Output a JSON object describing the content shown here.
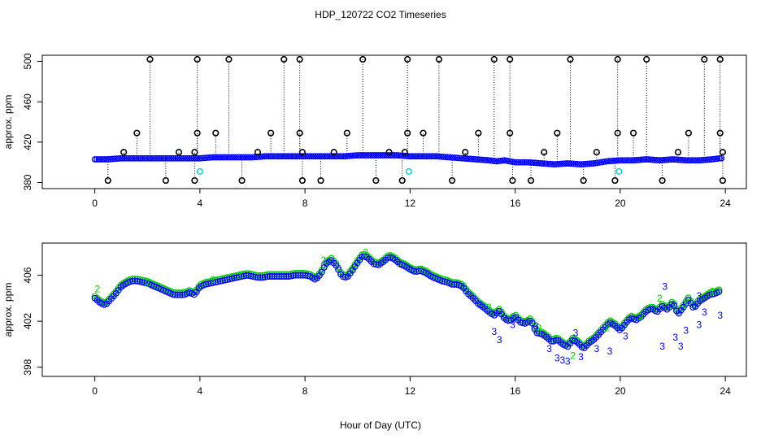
{
  "title": "HDP_120722  CO2 Timeseries",
  "xlabel": "Hour of Day (UTC)",
  "colors": {
    "blue": "#0000ff",
    "green": "#00cc00",
    "cyan": "#00cccc",
    "black": "#000000"
  },
  "chart_data": [
    {
      "type": "scatter",
      "ylabel": "approx. ppm",
      "xlim": [
        -2,
        24.8
      ],
      "ylim": [
        374,
        506
      ],
      "xticks": [
        0,
        4,
        8,
        12,
        16,
        20,
        24
      ],
      "yticks": [
        380,
        420,
        460,
        500
      ],
      "flag_high": 502,
      "flag_low": 382,
      "spike_x": [
        2.1,
        3.9,
        5.1,
        7.2,
        7.8,
        10.2,
        11.9,
        13.1,
        15.2,
        15.8,
        18.1,
        19.9,
        21.0,
        23.2,
        23.8
      ],
      "mid_markers": [
        {
          "x": 1.6,
          "y": 429
        },
        {
          "x": 3.9,
          "y": 429
        },
        {
          "x": 4.6,
          "y": 429
        },
        {
          "x": 6.7,
          "y": 429
        },
        {
          "x": 7.8,
          "y": 429
        },
        {
          "x": 9.6,
          "y": 429
        },
        {
          "x": 11.9,
          "y": 429
        },
        {
          "x": 12.5,
          "y": 429
        },
        {
          "x": 14.6,
          "y": 429
        },
        {
          "x": 15.8,
          "y": 429
        },
        {
          "x": 17.6,
          "y": 429
        },
        {
          "x": 19.9,
          "y": 429
        },
        {
          "x": 20.5,
          "y": 429
        },
        {
          "x": 22.6,
          "y": 429
        },
        {
          "x": 23.8,
          "y": 429
        },
        {
          "x": 1.1,
          "y": 410
        },
        {
          "x": 3.2,
          "y": 410
        },
        {
          "x": 3.8,
          "y": 410
        },
        {
          "x": 6.2,
          "y": 410
        },
        {
          "x": 7.9,
          "y": 410
        },
        {
          "x": 9.1,
          "y": 410
        },
        {
          "x": 11.2,
          "y": 410
        },
        {
          "x": 11.8,
          "y": 410
        },
        {
          "x": 14.1,
          "y": 410
        },
        {
          "x": 17.1,
          "y": 410
        },
        {
          "x": 19.1,
          "y": 410
        },
        {
          "x": 22.2,
          "y": 410
        },
        {
          "x": 23.9,
          "y": 410
        }
      ],
      "low_markers_x": [
        0.5,
        2.7,
        3.8,
        5.6,
        7.9,
        8.6,
        10.7,
        11.7,
        13.6,
        15.9,
        16.6,
        18.6,
        19.8,
        21.6,
        23.9
      ],
      "cyan_markers": [
        {
          "x": 4.0,
          "y": 391
        },
        {
          "x": 11.95,
          "y": 391
        },
        {
          "x": 19.95,
          "y": 391
        }
      ],
      "series": [
        {
          "name": "co2",
          "x": [
            0.05,
            0.5,
            1,
            1.5,
            2,
            2.5,
            3,
            3.5,
            4,
            4.5,
            5,
            5.5,
            6,
            6.5,
            7,
            7.5,
            8,
            8.5,
            9,
            9.5,
            10,
            10.5,
            11,
            11.5,
            12,
            12.5,
            13,
            13.5,
            14,
            14.5,
            15,
            15.3,
            15.6,
            16,
            16.5,
            17,
            17.5,
            18,
            18.5,
            19,
            19.5,
            20,
            20.5,
            21,
            21.5,
            22,
            22.5,
            23,
            23.5,
            23.8
          ],
          "y": [
            403,
            403,
            404,
            404,
            404,
            404,
            404,
            404,
            404,
            405,
            405,
            405,
            405,
            406,
            406,
            406,
            406,
            406,
            406,
            406,
            407,
            407,
            407,
            407,
            406,
            406,
            406,
            405,
            404,
            403,
            402,
            401,
            402,
            400,
            400,
            399,
            398,
            399,
            398,
            399,
            401,
            402,
            402,
            403,
            402,
            403,
            402,
            402,
            403,
            404
          ]
        }
      ]
    },
    {
      "type": "scatter",
      "ylabel": "approx. ppm",
      "xlim": [
        -2,
        24.8
      ],
      "ylim": [
        397.2,
        408.8
      ],
      "xticks": [
        0,
        4,
        8,
        12,
        16,
        20,
        24
      ],
      "yticks": [
        398,
        402,
        406
      ],
      "series": [
        {
          "name": "co2",
          "x": [
            0,
            0.2,
            0.4,
            0.6,
            0.8,
            1,
            1.2,
            1.4,
            1.6,
            1.8,
            2,
            2.2,
            2.4,
            2.6,
            2.8,
            3,
            3.2,
            3.4,
            3.6,
            3.8,
            4,
            4.2,
            4.4,
            4.6,
            4.8,
            5,
            5.2,
            5.4,
            5.6,
            5.8,
            6,
            6.2,
            6.4,
            6.6,
            6.8,
            7,
            7.2,
            7.4,
            7.6,
            7.8,
            8,
            8.2,
            8.4,
            8.6,
            8.8,
            9,
            9.2,
            9.4,
            9.6,
            9.8,
            10,
            10.2,
            10.4,
            10.6,
            10.8,
            11,
            11.2,
            11.4,
            11.6,
            11.8,
            12,
            12.2,
            12.4,
            12.6,
            12.8,
            13,
            13.2,
            13.4,
            13.6,
            13.8,
            14,
            14.2,
            14.4,
            14.6,
            14.8,
            15,
            15.2,
            15.4,
            15.6,
            15.8,
            16,
            16.2,
            16.4,
            16.6,
            16.8,
            17,
            17.2,
            17.4,
            17.6,
            17.8,
            18,
            18.2,
            18.4,
            18.6,
            18.8,
            19,
            19.2,
            19.4,
            19.6,
            19.8,
            20,
            20.2,
            20.4,
            20.6,
            20.8,
            21,
            21.2,
            21.4,
            21.6,
            21.8,
            22,
            22.2,
            22.4,
            22.6,
            22.8,
            23,
            23.2,
            23.4,
            23.6,
            23.8
          ],
          "y": [
            404,
            403.6,
            403.4,
            403.9,
            404.4,
            405,
            405.3,
            405.5,
            405.5,
            405.4,
            405.3,
            405.1,
            404.9,
            404.7,
            404.5,
            404.3,
            404.3,
            404.3,
            404.5,
            404.3,
            405,
            405.2,
            405.3,
            405.4,
            405.5,
            405.6,
            405.7,
            405.8,
            405.9,
            406,
            405.9,
            405.8,
            405.8,
            405.9,
            405.9,
            405.9,
            405.9,
            405.9,
            406,
            406,
            406,
            405.9,
            405.6,
            406.1,
            407,
            407.3,
            406.8,
            405.9,
            405.8,
            406.4,
            407.1,
            407.7,
            407.5,
            407,
            406.9,
            407.2,
            407.6,
            407.4,
            407,
            406.8,
            406.5,
            406.3,
            406.4,
            406.2,
            405.9,
            405.7,
            405.5,
            405.4,
            405.2,
            405.2,
            405,
            404.4,
            404,
            403.5,
            403.2,
            402.8,
            402.5,
            402.9,
            402.2,
            402,
            402.4,
            401.9,
            401.8,
            402.1,
            401,
            400.9,
            400.6,
            400.2,
            400.4,
            400,
            399.8,
            400.4,
            400.1,
            399.6,
            400.1,
            400.4,
            400.9,
            401.4,
            401.9,
            401.6,
            401.2,
            401.8,
            402.3,
            402.1,
            402.4,
            402.9,
            403.1,
            402.8,
            403.3,
            403,
            403.6,
            402.6,
            403.2,
            403.9,
            403.1,
            403.7,
            404,
            404.3,
            404.4,
            404.6
          ]
        },
        {
          "name": "flag3",
          "points": [
            [
              15.2,
              401.1
            ],
            [
              15.4,
              400.4
            ],
            [
              15.9,
              401.7
            ],
            [
              16.8,
              401.6
            ],
            [
              17.3,
              399.6
            ],
            [
              17.6,
              398.8
            ],
            [
              17.8,
              398.6
            ],
            [
              18.0,
              398.5
            ],
            [
              18.3,
              401.0
            ],
            [
              18.5,
              398.9
            ],
            [
              19.1,
              399.6
            ],
            [
              19.6,
              399.4
            ],
            [
              20.2,
              400.7
            ],
            [
              21.6,
              399.8
            ],
            [
              22.1,
              400.6
            ],
            [
              22.3,
              399.8
            ],
            [
              22.5,
              401.2
            ],
            [
              23.0,
              401.7
            ],
            [
              23.2,
              402.8
            ],
            [
              23.8,
              402.5
            ],
            [
              21.7,
              405
            ],
            [
              23.0,
              404.2
            ]
          ]
        },
        {
          "name": "flag2",
          "points": [
            [
              0.1,
              404.8
            ],
            [
              2.0,
              405.3
            ],
            [
              4.5,
              405.6
            ],
            [
              5.5,
              406
            ],
            [
              8.7,
              407.3
            ],
            [
              10.3,
              408.0
            ],
            [
              12.4,
              406.5
            ],
            [
              15.0,
              403.2
            ],
            [
              16.9,
              401.4
            ],
            [
              18.2,
              399.0
            ],
            [
              19.5,
              401.4
            ],
            [
              20.8,
              402.4
            ],
            [
              21.5,
              404.0
            ],
            [
              22.5,
              403.5
            ],
            [
              23.5,
              404.6
            ]
          ]
        }
      ]
    }
  ]
}
